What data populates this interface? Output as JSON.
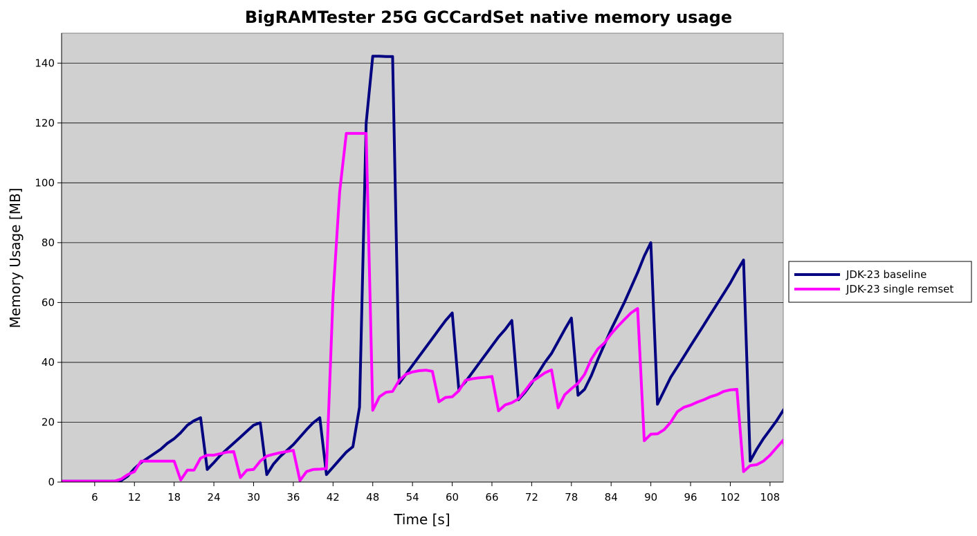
{
  "chart_data": {
    "type": "line",
    "title": "BigRAMTester 25G GCCardSet native memory usage",
    "xlabel": "Time [s]",
    "ylabel": "Memory Usage [MB]",
    "xlim": [
      1,
      110
    ],
    "ylim": [
      0,
      150
    ],
    "x_ticks": [
      6,
      12,
      18,
      24,
      30,
      36,
      42,
      48,
      54,
      60,
      66,
      72,
      78,
      84,
      90,
      96,
      102,
      108
    ],
    "y_ticks": [
      0,
      20,
      40,
      60,
      80,
      100,
      120,
      140
    ],
    "grid": "horizontal",
    "legend_position": "right",
    "plot_background": "#d0d0d0",
    "series": [
      {
        "name": "JDK-23 baseline",
        "color": "#000080",
        "points": [
          [
            1,
            0.3
          ],
          [
            9,
            0.3
          ],
          [
            10,
            0.5
          ],
          [
            11,
            2
          ],
          [
            12,
            4.5
          ],
          [
            13,
            6.5
          ],
          [
            14,
            8
          ],
          [
            15,
            9.5
          ],
          [
            16,
            11
          ],
          [
            17,
            13
          ],
          [
            18,
            14.5
          ],
          [
            19,
            16.5
          ],
          [
            20,
            19
          ],
          [
            21,
            20.5
          ],
          [
            22,
            21.5
          ],
          [
            23,
            4.2
          ],
          [
            24,
            6.5
          ],
          [
            25,
            9
          ],
          [
            26,
            11
          ],
          [
            27,
            13
          ],
          [
            28,
            15
          ],
          [
            29,
            17
          ],
          [
            30,
            19
          ],
          [
            31,
            19.8
          ],
          [
            32,
            2.5
          ],
          [
            33,
            6
          ],
          [
            34,
            8.5
          ],
          [
            35,
            10.5
          ],
          [
            36,
            12.5
          ],
          [
            37,
            15
          ],
          [
            38,
            17.5
          ],
          [
            39,
            19.8
          ],
          [
            40,
            21.5
          ],
          [
            41,
            2.5
          ],
          [
            42,
            5
          ],
          [
            43,
            7.5
          ],
          [
            44,
            10
          ],
          [
            45,
            11.8
          ],
          [
            46,
            25
          ],
          [
            47,
            120
          ],
          [
            48,
            142.3
          ],
          [
            49,
            142.3
          ],
          [
            50,
            142.2
          ],
          [
            51,
            142.2
          ],
          [
            52,
            33
          ],
          [
            53,
            36
          ],
          [
            54,
            39
          ],
          [
            55,
            42
          ],
          [
            56,
            45
          ],
          [
            57,
            48
          ],
          [
            58,
            51
          ],
          [
            59,
            54
          ],
          [
            60,
            56.5
          ],
          [
            61,
            31
          ],
          [
            62,
            33.5
          ],
          [
            63,
            36.5
          ],
          [
            64,
            39.5
          ],
          [
            65,
            42.5
          ],
          [
            66,
            45.5
          ],
          [
            67,
            48.5
          ],
          [
            68,
            51
          ],
          [
            69,
            54
          ],
          [
            70,
            27.5
          ],
          [
            71,
            30
          ],
          [
            72,
            33
          ],
          [
            73,
            36.5
          ],
          [
            74,
            40
          ],
          [
            75,
            43
          ],
          [
            76,
            47
          ],
          [
            77,
            51
          ],
          [
            78,
            54.8
          ],
          [
            79,
            29
          ],
          [
            80,
            31
          ],
          [
            81,
            35.5
          ],
          [
            82,
            41
          ],
          [
            83,
            46
          ],
          [
            84,
            51
          ],
          [
            85,
            55.5
          ],
          [
            86,
            60
          ],
          [
            87,
            65
          ],
          [
            88,
            70
          ],
          [
            89,
            75.5
          ],
          [
            90,
            80
          ],
          [
            91,
            26
          ],
          [
            92,
            30.5
          ],
          [
            93,
            35
          ],
          [
            94,
            38.5
          ],
          [
            95,
            42
          ],
          [
            96,
            45.5
          ],
          [
            97,
            49
          ],
          [
            98,
            52.5
          ],
          [
            99,
            56
          ],
          [
            100,
            59.5
          ],
          [
            101,
            63
          ],
          [
            102,
            66.5
          ],
          [
            103,
            70.5
          ],
          [
            104,
            74.2
          ],
          [
            105,
            7
          ],
          [
            106,
            11
          ],
          [
            107,
            14.5
          ],
          [
            108,
            17.5
          ],
          [
            109,
            20.5
          ],
          [
            110,
            24
          ],
          [
            111,
            27
          ]
        ]
      },
      {
        "name": "JDK-23 single remset",
        "color": "#ff00ff",
        "points": [
          [
            1,
            0.3
          ],
          [
            9,
            0.3
          ],
          [
            10,
            1
          ],
          [
            11,
            2.5
          ],
          [
            12,
            3.5
          ],
          [
            13,
            7
          ],
          [
            14,
            7
          ],
          [
            15,
            7
          ],
          [
            16,
            7
          ],
          [
            17,
            7
          ],
          [
            18,
            7
          ],
          [
            19,
            0.7
          ],
          [
            20,
            4
          ],
          [
            21,
            4
          ],
          [
            22,
            8
          ],
          [
            23,
            9
          ],
          [
            24,
            9
          ],
          [
            25,
            9.5
          ],
          [
            26,
            10
          ],
          [
            27,
            10.2
          ],
          [
            28,
            1.5
          ],
          [
            29,
            4
          ],
          [
            30,
            4.2
          ],
          [
            31,
            7
          ],
          [
            32,
            8.7
          ],
          [
            33,
            9.3
          ],
          [
            34,
            9.8
          ],
          [
            35,
            10.2
          ],
          [
            36,
            10.6
          ],
          [
            37,
            0.5
          ],
          [
            38,
            3.5
          ],
          [
            39,
            4.2
          ],
          [
            40,
            4.3
          ],
          [
            41,
            4.5
          ],
          [
            42,
            62
          ],
          [
            43,
            97
          ],
          [
            44,
            116.5
          ],
          [
            45,
            116.5
          ],
          [
            46,
            116.5
          ],
          [
            47,
            116.5
          ],
          [
            48,
            24
          ],
          [
            49,
            28.5
          ],
          [
            50,
            30
          ],
          [
            51,
            30.3
          ],
          [
            52,
            34
          ],
          [
            53,
            36
          ],
          [
            54,
            36.8
          ],
          [
            55,
            37.2
          ],
          [
            56,
            37.4
          ],
          [
            57,
            37
          ],
          [
            58,
            26.8
          ],
          [
            59,
            28.3
          ],
          [
            60,
            28.5
          ],
          [
            61,
            30.5
          ],
          [
            62,
            34
          ],
          [
            63,
            34.5
          ],
          [
            64,
            34.8
          ],
          [
            65,
            35
          ],
          [
            66,
            35.3
          ],
          [
            67,
            23.8
          ],
          [
            68,
            25.8
          ],
          [
            69,
            26.5
          ],
          [
            70,
            27.8
          ],
          [
            71,
            30.5
          ],
          [
            72,
            33.5
          ],
          [
            73,
            35
          ],
          [
            74,
            36.5
          ],
          [
            75,
            37.5
          ],
          [
            76,
            24.8
          ],
          [
            77,
            29.2
          ],
          [
            78,
            31.2
          ],
          [
            79,
            33
          ],
          [
            80,
            36
          ],
          [
            81,
            41
          ],
          [
            82,
            44.5
          ],
          [
            83,
            46.5
          ],
          [
            84,
            49.5
          ],
          [
            85,
            52
          ],
          [
            86,
            54.3
          ],
          [
            87,
            56.5
          ],
          [
            88,
            58
          ],
          [
            89,
            13.8
          ],
          [
            90,
            16
          ],
          [
            91,
            16.1
          ],
          [
            92,
            17.5
          ],
          [
            93,
            20
          ],
          [
            94,
            23.5
          ],
          [
            95,
            25
          ],
          [
            96,
            25.7
          ],
          [
            97,
            26.7
          ],
          [
            98,
            27.5
          ],
          [
            99,
            28.5
          ],
          [
            100,
            29.2
          ],
          [
            101,
            30.3
          ],
          [
            102,
            30.8
          ],
          [
            103,
            31
          ],
          [
            104,
            3.5
          ],
          [
            105,
            5.5
          ],
          [
            106,
            5.8
          ],
          [
            107,
            7
          ],
          [
            108,
            9
          ],
          [
            109,
            11.5
          ],
          [
            110,
            14
          ],
          [
            111,
            1
          ]
        ]
      }
    ]
  }
}
